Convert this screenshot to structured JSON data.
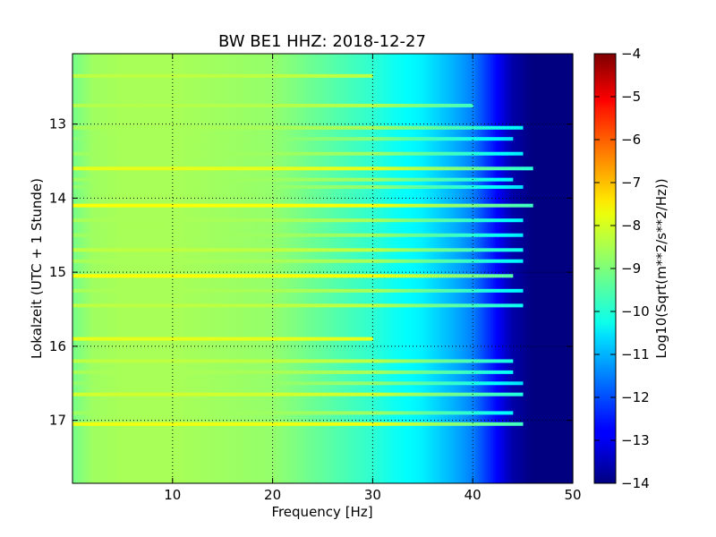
{
  "chart_data": {
    "type": "heatmap",
    "title": "BW BE1 HHZ: 2018-12-27",
    "xlabel": "Frequency [Hz]",
    "ylabel": "Lokalzeit (UTC + 1 Stunde)",
    "xlim": [
      0,
      50
    ],
    "ylim": [
      12.05,
      17.85
    ],
    "y_inverted": true,
    "xticks": [
      10,
      20,
      30,
      40,
      50
    ],
    "yticks": [
      13,
      14,
      15,
      16,
      17
    ],
    "grid": true,
    "colormap": "jet",
    "colorbar": {
      "label": "Log10(Sqrt(m**2/s**2/Hz))",
      "range": [
        -14,
        -4
      ],
      "ticks": [
        -4,
        -5,
        -6,
        -7,
        -8,
        -9,
        -10,
        -11,
        -12,
        -13,
        -14
      ]
    },
    "frequency_profile": {
      "frequency_hz": [
        0,
        2,
        5,
        10,
        15,
        20,
        25,
        30,
        32,
        35,
        38,
        40,
        42,
        44,
        46,
        50
      ],
      "level": [
        -9.1,
        -8.7,
        -8.6,
        -8.6,
        -8.7,
        -8.8,
        -9.3,
        -9.8,
        -10.1,
        -10.4,
        -11.0,
        -11.5,
        -12.5,
        -13.6,
        -14,
        -14
      ]
    },
    "time_bands": [
      {
        "time": 12.35,
        "f_max": 30,
        "level": -8.4
      },
      {
        "time": 12.75,
        "f_max": 40,
        "level": -8.5
      },
      {
        "time": 13.05,
        "f_max": 45,
        "level": -8.6
      },
      {
        "time": 13.2,
        "f_max": 44,
        "level": -8.9
      },
      {
        "time": 13.4,
        "f_max": 45,
        "level": -8.7
      },
      {
        "time": 13.6,
        "f_max": 46,
        "level": -8.0
      },
      {
        "time": 13.75,
        "f_max": 44,
        "level": -8.7
      },
      {
        "time": 13.85,
        "f_max": 45,
        "level": -8.8
      },
      {
        "time": 14.1,
        "f_max": 46,
        "level": -7.8
      },
      {
        "time": 14.3,
        "f_max": 45,
        "level": -8.6
      },
      {
        "time": 14.5,
        "f_max": 45,
        "level": -8.7
      },
      {
        "time": 14.7,
        "f_max": 45,
        "level": -8.4
      },
      {
        "time": 14.85,
        "f_max": 45,
        "level": -8.6
      },
      {
        "time": 15.05,
        "f_max": 44,
        "level": -7.8
      },
      {
        "time": 15.25,
        "f_max": 45,
        "level": -8.6
      },
      {
        "time": 15.45,
        "f_max": 45,
        "level": -8.4
      },
      {
        "time": 15.9,
        "f_max": 30,
        "level": -8.0
      },
      {
        "time": 16.2,
        "f_max": 44,
        "level": -8.4
      },
      {
        "time": 16.35,
        "f_max": 44,
        "level": -8.6
      },
      {
        "time": 16.5,
        "f_max": 45,
        "level": -8.8
      },
      {
        "time": 16.65,
        "f_max": 45,
        "level": -8.2
      },
      {
        "time": 16.9,
        "f_max": 44,
        "level": -8.7
      },
      {
        "time": 17.05,
        "f_max": 45,
        "level": -7.9
      }
    ]
  }
}
